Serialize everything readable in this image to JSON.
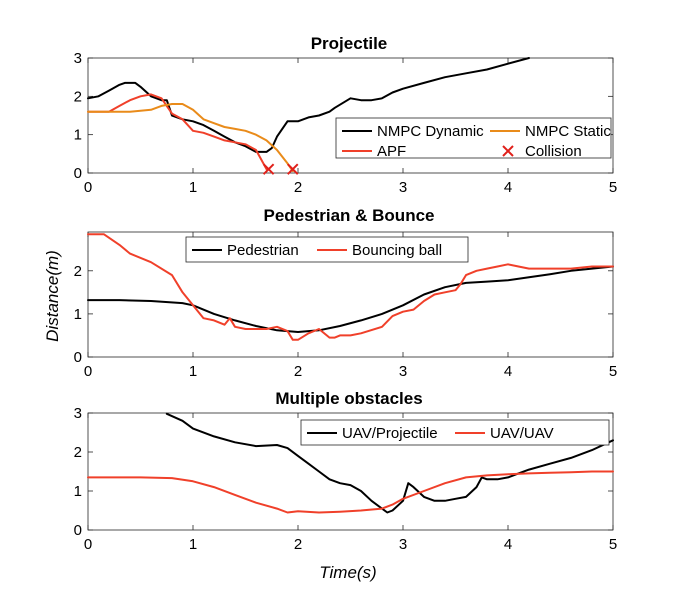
{
  "chart_data": [
    {
      "type": "line",
      "title": "Projectile",
      "xlim": [
        0,
        5
      ],
      "ylim": [
        0,
        3
      ],
      "xticks": [
        "0",
        "1",
        "2",
        "3",
        "4",
        "5"
      ],
      "yticks": [
        "0",
        "1",
        "2",
        "3"
      ],
      "legend_position": "right",
      "series": [
        {
          "name": "NMPC Dynamic",
          "color": "#000000",
          "x": [
            0,
            0.1,
            0.2,
            0.3,
            0.35,
            0.45,
            0.5,
            0.6,
            0.7,
            0.75,
            0.8,
            0.9,
            1.0,
            1.1,
            1.2,
            1.3,
            1.4,
            1.5,
            1.6,
            1.7,
            1.75,
            1.8,
            1.9,
            2.0,
            2.1,
            2.2,
            2.3,
            2.35,
            2.5,
            2.6,
            2.7,
            2.8,
            2.9,
            3.0,
            3.2,
            3.4,
            3.6,
            3.8,
            4.0,
            4.2
          ],
          "y": [
            1.95,
            2.0,
            2.15,
            2.3,
            2.35,
            2.35,
            2.25,
            2.0,
            1.9,
            1.9,
            1.5,
            1.4,
            1.35,
            1.25,
            1.1,
            0.95,
            0.8,
            0.7,
            0.55,
            0.55,
            0.65,
            0.95,
            1.35,
            1.35,
            1.45,
            1.5,
            1.6,
            1.7,
            1.95,
            1.9,
            1.9,
            1.95,
            2.1,
            2.2,
            2.35,
            2.5,
            2.6,
            2.7,
            2.85,
            3.0
          ]
        },
        {
          "name": "APF",
          "color": "#f0402a",
          "x": [
            0,
            0.2,
            0.3,
            0.4,
            0.5,
            0.6,
            0.7,
            0.8,
            0.9,
            1.0,
            1.1,
            1.2,
            1.3,
            1.4,
            1.5,
            1.6,
            1.65,
            1.7
          ],
          "y": [
            1.6,
            1.6,
            1.75,
            1.9,
            2.0,
            2.05,
            1.95,
            1.55,
            1.4,
            1.1,
            1.05,
            0.95,
            0.85,
            0.8,
            0.75,
            0.6,
            0.35,
            0.1
          ]
        },
        {
          "name": "NMPC Static",
          "color": "#e98b1a",
          "x": [
            0,
            0.2,
            0.4,
            0.6,
            0.7,
            0.8,
            0.9,
            1.0,
            1.1,
            1.2,
            1.3,
            1.4,
            1.5,
            1.6,
            1.7,
            1.8,
            1.9,
            1.95
          ],
          "y": [
            1.6,
            1.6,
            1.6,
            1.65,
            1.75,
            1.8,
            1.8,
            1.65,
            1.4,
            1.3,
            1.2,
            1.15,
            1.1,
            1.0,
            0.85,
            0.6,
            0.25,
            0.05
          ]
        }
      ],
      "markers": [
        {
          "name": "Collision",
          "color": "#e0201a",
          "symbol": "x",
          "points": [
            [
              1.72,
              0.1
            ],
            [
              1.95,
              0.1
            ]
          ]
        }
      ]
    },
    {
      "type": "line",
      "title": "Pedestrian & Bounce",
      "ylabel": "Distance(m)",
      "xlim": [
        0,
        5
      ],
      "ylim": [
        0,
        2.9
      ],
      "xticks": [
        "0",
        "1",
        "2",
        "3",
        "4",
        "5"
      ],
      "yticks": [
        "0",
        "1",
        "2"
      ],
      "legend_position": "top",
      "series": [
        {
          "name": "Pedestrian",
          "color": "#000000",
          "x": [
            0,
            0.3,
            0.6,
            0.9,
            1.0,
            1.2,
            1.4,
            1.6,
            1.8,
            2.0,
            2.2,
            2.4,
            2.6,
            2.8,
            3.0,
            3.2,
            3.4,
            3.6,
            3.8,
            4.0,
            4.2,
            4.4,
            4.6,
            4.8,
            5.0
          ],
          "y": [
            1.32,
            1.32,
            1.3,
            1.25,
            1.2,
            1.0,
            0.85,
            0.72,
            0.62,
            0.58,
            0.62,
            0.72,
            0.85,
            1.0,
            1.2,
            1.45,
            1.62,
            1.72,
            1.75,
            1.78,
            1.85,
            1.92,
            2.0,
            2.05,
            2.1
          ]
        },
        {
          "name": "Bouncing ball",
          "color": "#f0402a",
          "x": [
            0,
            0.15,
            0.3,
            0.4,
            0.6,
            0.8,
            0.9,
            1.0,
            1.1,
            1.2,
            1.3,
            1.35,
            1.4,
            1.5,
            1.6,
            1.7,
            1.8,
            1.9,
            1.95,
            2.0,
            2.1,
            2.2,
            2.3,
            2.35,
            2.4,
            2.5,
            2.6,
            2.8,
            2.9,
            3.0,
            3.1,
            3.2,
            3.3,
            3.4,
            3.5,
            3.55,
            3.6,
            3.7,
            3.8,
            3.9,
            4.0,
            4.1,
            4.2,
            4.4,
            4.6,
            4.8,
            5.0
          ],
          "y": [
            2.85,
            2.85,
            2.6,
            2.4,
            2.2,
            1.9,
            1.5,
            1.2,
            0.9,
            0.85,
            0.75,
            0.9,
            0.7,
            0.65,
            0.65,
            0.65,
            0.7,
            0.6,
            0.4,
            0.4,
            0.55,
            0.65,
            0.45,
            0.45,
            0.5,
            0.5,
            0.55,
            0.7,
            0.95,
            1.05,
            1.1,
            1.3,
            1.45,
            1.5,
            1.55,
            1.7,
            1.9,
            2.0,
            2.05,
            2.1,
            2.15,
            2.1,
            2.05,
            2.05,
            2.05,
            2.1,
            2.1
          ]
        }
      ]
    },
    {
      "type": "line",
      "title": "Multiple obstacles",
      "xlabel": "Time(s)",
      "xlim": [
        0,
        5
      ],
      "ylim": [
        0,
        3
      ],
      "xticks": [
        "0",
        "1",
        "2",
        "3",
        "4",
        "5"
      ],
      "yticks": [
        "0",
        "1",
        "2",
        "3"
      ],
      "legend_position": "top-right",
      "series": [
        {
          "name": "UAV/Projectile",
          "color": "#000000",
          "x": [
            0.75,
            0.9,
            1.0,
            1.2,
            1.4,
            1.6,
            1.8,
            1.9,
            2.0,
            2.1,
            2.2,
            2.3,
            2.4,
            2.5,
            2.6,
            2.7,
            2.8,
            2.85,
            2.9,
            3.0,
            3.05,
            3.1,
            3.2,
            3.3,
            3.4,
            3.5,
            3.6,
            3.7,
            3.75,
            3.8,
            3.9,
            4.0,
            4.1,
            4.2,
            4.4,
            4.6,
            4.8,
            5.0
          ],
          "y": [
            2.98,
            2.8,
            2.6,
            2.4,
            2.25,
            2.15,
            2.18,
            2.1,
            1.9,
            1.7,
            1.5,
            1.3,
            1.2,
            1.15,
            1.0,
            0.75,
            0.55,
            0.45,
            0.5,
            0.75,
            1.2,
            1.1,
            0.85,
            0.75,
            0.75,
            0.8,
            0.85,
            1.1,
            1.35,
            1.3,
            1.3,
            1.35,
            1.45,
            1.55,
            1.7,
            1.85,
            2.05,
            2.3
          ]
        },
        {
          "name": "UAV/UAV",
          "color": "#f0402a",
          "x": [
            0,
            0.5,
            0.8,
            1.0,
            1.2,
            1.4,
            1.6,
            1.8,
            1.9,
            2.0,
            2.2,
            2.4,
            2.6,
            2.8,
            2.9,
            3.0,
            3.2,
            3.4,
            3.6,
            3.8,
            4.0,
            4.2,
            4.4,
            4.6,
            4.8,
            5.0
          ],
          "y": [
            1.35,
            1.35,
            1.33,
            1.25,
            1.1,
            0.9,
            0.7,
            0.55,
            0.45,
            0.48,
            0.45,
            0.47,
            0.5,
            0.55,
            0.65,
            0.8,
            1.0,
            1.2,
            1.35,
            1.4,
            1.43,
            1.45,
            1.47,
            1.48,
            1.5,
            1.5
          ]
        }
      ]
    }
  ]
}
